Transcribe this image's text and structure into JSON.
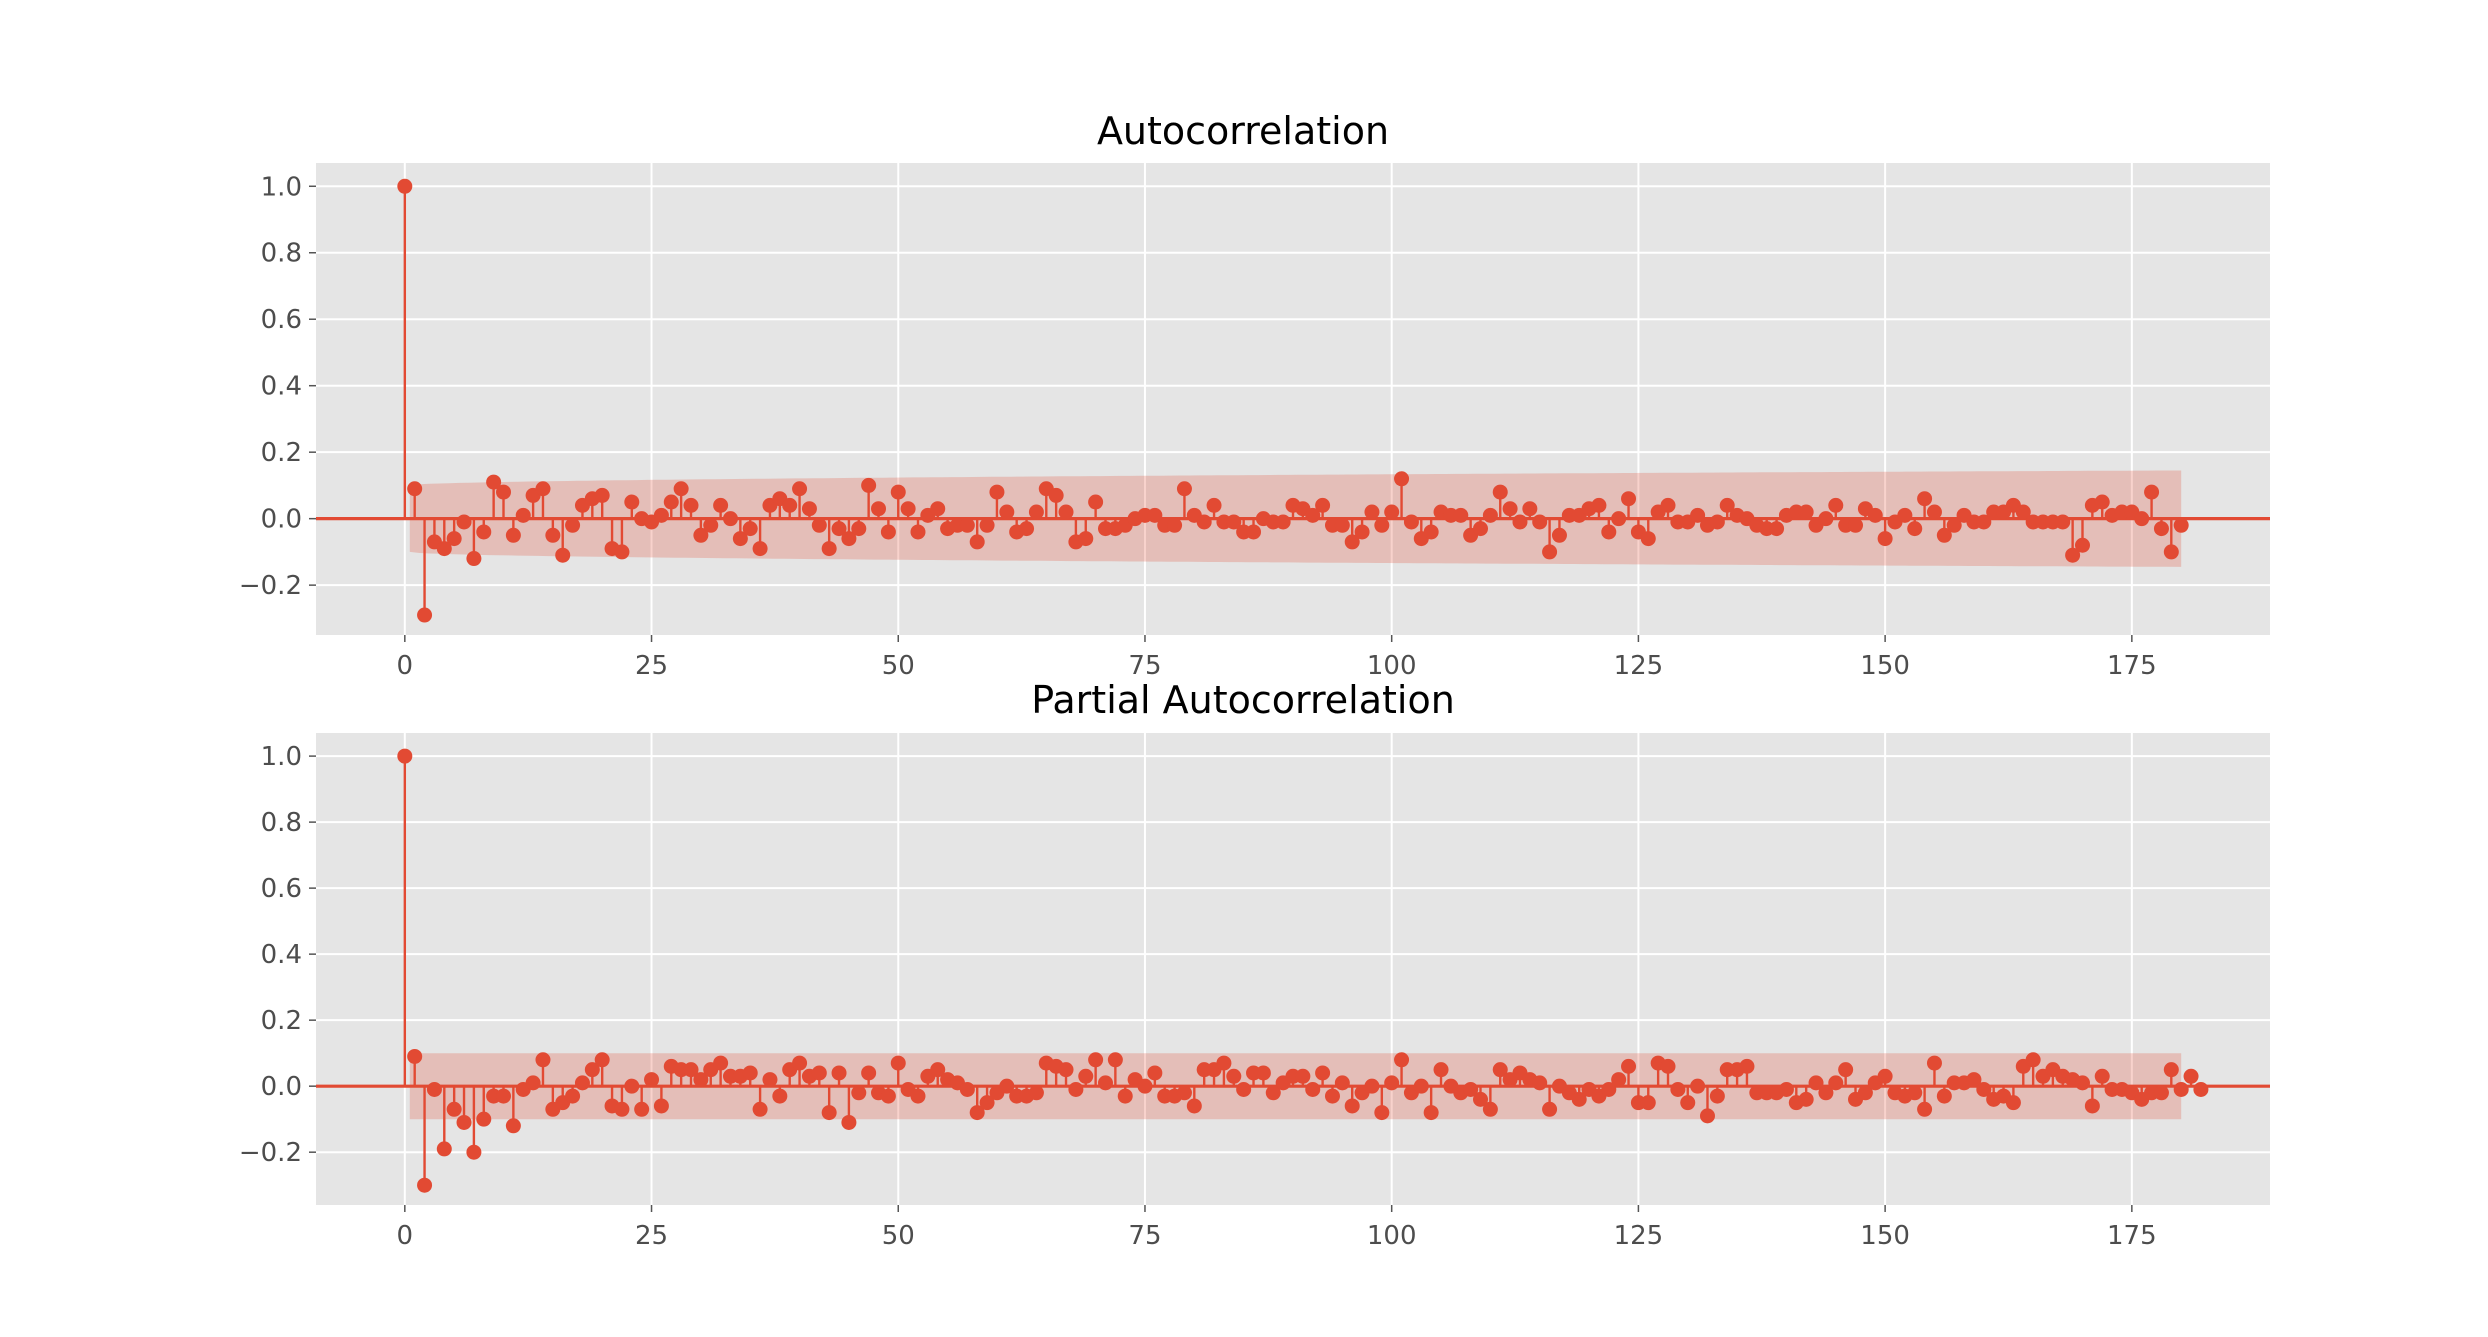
{
  "style": {
    "background": "#e5e5e5",
    "grid_color": "#ffffff",
    "mark_color": "#e24a33",
    "band_color": "#e24a33"
  },
  "chart_data": [
    {
      "type": "stem",
      "title": "Autocorrelation",
      "xlabel": "",
      "ylabel": "",
      "xlim": [
        -9,
        189
      ],
      "ylim": [
        -0.35,
        1.07
      ],
      "xticks": [
        0,
        25,
        50,
        75,
        100,
        125,
        150,
        175
      ],
      "xtick_labels": [
        "0",
        "25",
        "50",
        "75",
        "100",
        "125",
        "150",
        "175"
      ],
      "yticks": [
        -0.2,
        0.0,
        0.2,
        0.4,
        0.6,
        0.8,
        1.0
      ],
      "ytick_labels": [
        "−0.2",
        "0.0",
        "0.2",
        "0.4",
        "0.6",
        "0.8",
        "1.0"
      ],
      "grid": true,
      "legend": "none",
      "confidence_band": {
        "start_lag": 1,
        "end_lag": 180,
        "half_width_start": 0.1,
        "half_width_end": 0.145
      },
      "lags_start": 0,
      "values": [
        1.0,
        0.09,
        -0.29,
        -0.07,
        -0.09,
        -0.06,
        -0.01,
        -0.12,
        -0.04,
        0.11,
        0.08,
        -0.05,
        0.01,
        0.07,
        0.09,
        -0.05,
        -0.11,
        -0.02,
        0.04,
        0.06,
        0.07,
        -0.09,
        -0.1,
        0.05,
        0.0,
        -0.01,
        0.01,
        0.05,
        0.09,
        0.04,
        -0.05,
        -0.02,
        0.04,
        0.0,
        -0.06,
        -0.03,
        -0.09,
        0.04,
        0.06,
        0.04,
        0.09,
        0.03,
        -0.02,
        -0.09,
        -0.03,
        -0.06,
        -0.03,
        0.1,
        0.03,
        -0.04,
        0.08,
        0.03,
        -0.04,
        0.01,
        0.03,
        -0.03,
        -0.02,
        -0.02,
        -0.07,
        -0.02,
        0.08,
        0.02,
        -0.04,
        -0.03,
        0.02,
        0.09,
        0.07,
        0.02,
        -0.07,
        -0.06,
        0.05,
        -0.03,
        -0.03,
        -0.02,
        0.0,
        0.01,
        0.01,
        -0.02,
        -0.02,
        0.09,
        0.01,
        -0.01,
        0.04,
        -0.01,
        -0.01,
        -0.04,
        -0.04,
        0.0,
        -0.01,
        -0.01,
        0.04,
        0.03,
        0.01,
        0.04,
        -0.02,
        -0.02,
        -0.07,
        -0.04,
        0.02,
        -0.02,
        0.02,
        0.12,
        -0.01,
        -0.06,
        -0.04,
        0.02,
        0.01,
        0.01,
        -0.05,
        -0.03,
        0.01,
        0.08,
        0.03,
        -0.01,
        0.03,
        -0.01,
        -0.1,
        -0.05,
        0.01,
        0.01,
        0.03,
        0.04,
        -0.04,
        0.0,
        0.06,
        -0.04,
        -0.06,
        0.02,
        0.04,
        -0.01,
        -0.01,
        0.01,
        -0.02,
        -0.01,
        0.04,
        0.01,
        0.0,
        -0.02,
        -0.03,
        -0.03,
        0.01,
        0.02,
        0.02,
        -0.02,
        0.0,
        0.04,
        -0.02,
        -0.02,
        0.03,
        0.01,
        -0.06,
        -0.01,
        0.01,
        -0.03,
        0.06,
        0.02,
        -0.05,
        -0.02,
        0.01,
        -0.01,
        -0.01,
        0.02,
        0.02,
        0.04,
        0.02,
        -0.01,
        -0.01,
        -0.01,
        -0.01,
        -0.11,
        -0.08,
        0.04,
        0.05,
        0.01,
        0.02,
        0.02,
        0.0,
        0.08,
        -0.03,
        -0.1,
        -0.02
      ]
    },
    {
      "type": "stem",
      "title": "Partial Autocorrelation",
      "xlabel": "",
      "ylabel": "",
      "xlim": [
        -9,
        189
      ],
      "ylim": [
        -0.36,
        1.07
      ],
      "xticks": [
        0,
        25,
        50,
        75,
        100,
        125,
        150,
        175
      ],
      "xtick_labels": [
        "0",
        "25",
        "50",
        "75",
        "100",
        "125",
        "150",
        "175"
      ],
      "yticks": [
        -0.2,
        0.0,
        0.2,
        0.4,
        0.6,
        0.8,
        1.0
      ],
      "ytick_labels": [
        "−0.2",
        "0.0",
        "0.2",
        "0.4",
        "0.6",
        "0.8",
        "1.0"
      ],
      "grid": true,
      "legend": "none",
      "confidence_band": {
        "start_lag": 1,
        "end_lag": 180,
        "half_width_start": 0.1,
        "half_width_end": 0.1
      },
      "lags_start": 0,
      "values": [
        1.0,
        0.09,
        -0.3,
        -0.01,
        -0.19,
        -0.07,
        -0.11,
        -0.2,
        -0.1,
        -0.03,
        -0.03,
        -0.12,
        -0.01,
        0.01,
        0.08,
        -0.07,
        -0.05,
        -0.03,
        0.01,
        0.05,
        0.08,
        -0.06,
        -0.07,
        0.0,
        -0.07,
        0.02,
        -0.06,
        0.06,
        0.05,
        0.05,
        0.02,
        0.05,
        0.07,
        0.03,
        0.03,
        0.04,
        -0.07,
        0.02,
        -0.03,
        0.05,
        0.07,
        0.03,
        0.04,
        -0.08,
        0.04,
        -0.11,
        -0.02,
        0.04,
        -0.02,
        -0.03,
        0.07,
        -0.01,
        -0.03,
        0.03,
        0.05,
        0.02,
        0.01,
        -0.01,
        -0.08,
        -0.05,
        -0.02,
        0.0,
        -0.03,
        -0.03,
        -0.02,
        0.07,
        0.06,
        0.05,
        -0.01,
        0.03,
        0.08,
        0.01,
        0.08,
        -0.03,
        0.02,
        0.0,
        0.04,
        -0.03,
        -0.03,
        -0.02,
        -0.06,
        0.05,
        0.05,
        0.07,
        0.03,
        -0.01,
        0.04,
        0.04,
        -0.02,
        0.01,
        0.03,
        0.03,
        -0.01,
        0.04,
        -0.03,
        0.01,
        -0.06,
        -0.02,
        0.0,
        -0.08,
        0.01,
        0.08,
        -0.02,
        0.0,
        -0.08,
        0.05,
        0.0,
        -0.02,
        -0.01,
        -0.04,
        -0.07,
        0.05,
        0.02,
        0.04,
        0.02,
        0.01,
        -0.07,
        0.0,
        -0.02,
        -0.04,
        -0.01,
        -0.03,
        -0.01,
        0.02,
        0.06,
        -0.05,
        -0.05,
        0.07,
        0.06,
        -0.01,
        -0.05,
        0.0,
        -0.09,
        -0.03,
        0.05,
        0.05,
        0.06,
        -0.02,
        -0.02,
        -0.02,
        -0.01,
        -0.05,
        -0.04,
        0.01,
        -0.02,
        0.01,
        0.05,
        -0.04,
        -0.02,
        0.01,
        0.03,
        -0.02,
        -0.03,
        -0.02,
        -0.07,
        0.07,
        -0.03,
        0.01,
        0.01,
        0.02,
        -0.01,
        -0.04,
        -0.03,
        -0.05,
        0.06,
        0.08,
        0.03,
        0.05,
        0.03,
        0.02,
        0.01,
        -0.06,
        0.03,
        -0.01,
        -0.01,
        -0.02,
        -0.04,
        -0.02,
        -0.02,
        0.05,
        -0.01,
        0.03,
        -0.01
      ]
    }
  ]
}
